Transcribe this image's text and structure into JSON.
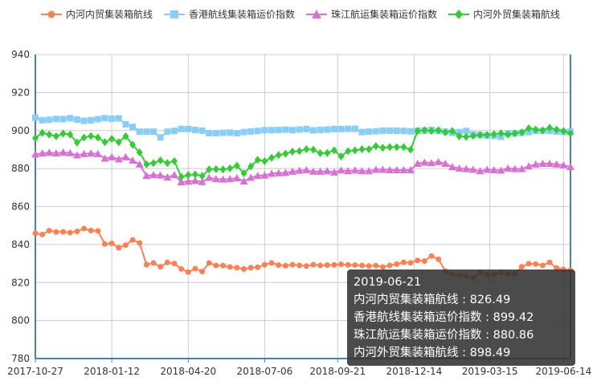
{
  "chart_data": {
    "type": "line",
    "title": "",
    "xlabel": "",
    "ylabel": "",
    "ylim": [
      780,
      940
    ],
    "yticks": [
      "780",
      "800",
      "820",
      "840",
      "860",
      "880",
      "900",
      "920",
      "940"
    ],
    "xtick_labels": [
      "2017-10-27",
      "2018-01-12",
      "2018-04-20",
      "2018-07-06",
      "2018-09-21",
      "2018-12-14",
      "2019-03-15",
      "2019-06-14"
    ],
    "xtick_indices": [
      0,
      11,
      22,
      33,
      43.5,
      54.5,
      65.4,
      76
    ],
    "grid": true,
    "legend_position": "top-center",
    "series": [
      {
        "name": "内河内贸集装箱航线",
        "color": "#ff7f50",
        "marker": "circle",
        "values": [
          845.9,
          845.3,
          847.3,
          846.6,
          846.7,
          846.3,
          846.9,
          848.4,
          847.4,
          847.2,
          840.3,
          840.6,
          838.3,
          839.7,
          842.4,
          840.8,
          829.4,
          830.3,
          828.3,
          830.6,
          830.0,
          827.1,
          825.5,
          827.3,
          825.8,
          830.3,
          829.0,
          828.9,
          828.2,
          827.8,
          827.1,
          827.8,
          828.0,
          829.4,
          830.3,
          829.2,
          828.9,
          829.4,
          829.0,
          828.7,
          829.4,
          829.0,
          829.2,
          829.3,
          829.6,
          829.3,
          829.2,
          829.0,
          828.7,
          828.9,
          828.2,
          829.0,
          829.7,
          830.6,
          830.4,
          831.6,
          831.3,
          833.95,
          832.3,
          826.0,
          824.3,
          823.8,
          823.4,
          822.4,
          825.2,
          824.1,
          824.3,
          825.2,
          824.4,
          824.5,
          828.3,
          829.9,
          829.7,
          829.0,
          830.6,
          827.6,
          826.9,
          826.49
        ]
      },
      {
        "name": "香港航线集装箱运价指数",
        "color": "#87cefa",
        "marker": "square",
        "values": [
          906.8,
          905.4,
          905.7,
          906.1,
          906.0,
          906.5,
          905.8,
          905.1,
          905.4,
          906.0,
          906.5,
          906.2,
          906.4,
          903.3,
          901.9,
          899.4,
          899.4,
          899.4,
          896.4,
          899.4,
          899.8,
          900.8,
          900.8,
          900.3,
          899.9,
          898.6,
          898.6,
          898.8,
          898.9,
          898.6,
          899.2,
          899.5,
          899.8,
          900.2,
          900.2,
          900.3,
          900.5,
          900.2,
          900.5,
          900.8,
          900.1,
          900.3,
          900.5,
          900.8,
          900.8,
          900.9,
          900.9,
          899.2,
          899.4,
          899.6,
          899.9,
          899.9,
          899.9,
          899.8,
          899.6,
          899.9,
          899.9,
          900.3,
          899.8,
          899.4,
          898.8,
          899.2,
          899.8,
          897.9,
          897.7,
          897.4,
          897.2,
          896.7,
          898.5,
          898.5,
          898.8,
          899.2,
          899.8,
          899.8,
          899.8,
          899.5,
          899.2,
          899.42
        ]
      },
      {
        "name": "珠江航运集装箱运价指数",
        "color": "#da70d6",
        "marker": "triangle",
        "values": [
          887.5,
          888.0,
          888.4,
          888.1,
          888.5,
          888.2,
          887.0,
          887.7,
          888.0,
          887.7,
          885.3,
          886.0,
          884.9,
          886.0,
          884.3,
          882.2,
          876.2,
          876.6,
          876.4,
          875.4,
          876.6,
          872.9,
          873.2,
          873.6,
          873.0,
          875.2,
          874.5,
          874.3,
          874.5,
          875.0,
          873.3,
          875.2,
          876.2,
          876.4,
          877.3,
          877.6,
          877.8,
          878.4,
          878.96,
          879.2,
          878.4,
          878.4,
          878.7,
          878.0,
          879.1,
          878.7,
          879.1,
          878.7,
          878.7,
          879.4,
          879.4,
          879.2,
          879.2,
          879.2,
          879.2,
          882.6,
          883.2,
          882.9,
          883.5,
          882.6,
          880.8,
          880.1,
          879.8,
          879.4,
          878.7,
          879.4,
          879.2,
          879.0,
          880.1,
          879.8,
          879.8,
          881.2,
          882.2,
          882.6,
          882.6,
          882.2,
          881.8,
          880.86
        ]
      },
      {
        "name": "内河外贸集装箱航线",
        "color": "#32cd32",
        "marker": "diamond",
        "values": [
          896.0,
          898.8,
          897.9,
          897.0,
          898.4,
          897.9,
          893.7,
          896.3,
          897.1,
          896.3,
          893.9,
          895.6,
          893.9,
          897.0,
          892.5,
          888.5,
          882.2,
          882.9,
          884.3,
          882.9,
          883.9,
          875.6,
          876.6,
          876.9,
          876.1,
          879.5,
          879.7,
          879.5,
          880.1,
          881.5,
          877.5,
          881.1,
          884.6,
          883.9,
          885.7,
          887.1,
          887.8,
          888.9,
          889.2,
          890.2,
          889.9,
          888.1,
          888.2,
          889.6,
          886.4,
          889.2,
          889.6,
          890.2,
          890.2,
          891.8,
          890.9,
          891.3,
          891.3,
          891.3,
          889.9,
          899.8,
          900.2,
          899.8,
          900.1,
          899.1,
          899.8,
          897.0,
          896.7,
          897.2,
          897.7,
          897.7,
          898.1,
          898.6,
          897.9,
          898.6,
          899.1,
          901.2,
          900.5,
          900.1,
          901.5,
          900.5,
          899.8,
          898.49
        ]
      }
    ],
    "tooltip": {
      "date": "2019-06-21",
      "lines": [
        "内河内贸集装箱航线 : 826.49",
        "香港航线集装箱运价指数 : 899.42",
        "珠江航运集装箱运价指数 : 880.86",
        "内河外贸集装箱航线 : 898.49"
      ]
    }
  }
}
